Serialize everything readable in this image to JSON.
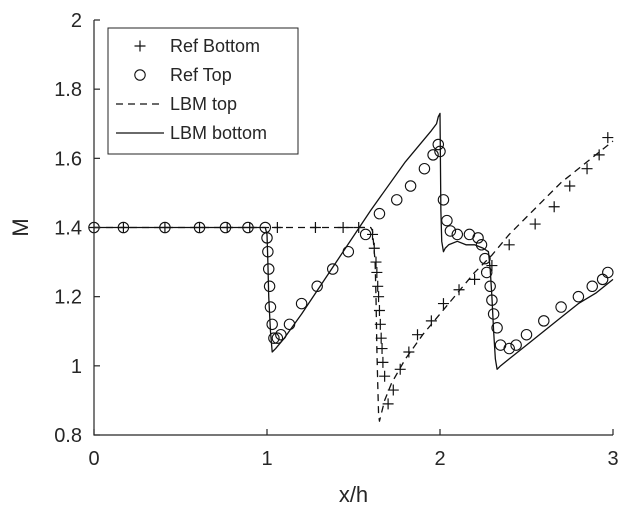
{
  "chart_data": {
    "type": "line",
    "title": "",
    "xlabel": "x/h",
    "ylabel": "M",
    "xlim": [
      0,
      3
    ],
    "ylim": [
      0.8,
      2
    ],
    "xticks": [
      0,
      1,
      2,
      3
    ],
    "xtick_labels": [
      "0",
      "1",
      "2",
      "3"
    ],
    "yticks": [
      0.8,
      1,
      1.2,
      1.4,
      1.6,
      1.8,
      2
    ],
    "ytick_labels": [
      "0.8",
      "1",
      "1.2",
      "1.4",
      "1.6",
      "1.8",
      "2"
    ],
    "grid": false,
    "legend_position": "top-left",
    "series": [
      {
        "name": "Ref Bottom",
        "style": "marker-plus",
        "x": [
          0,
          0.17,
          0.41,
          0.61,
          0.77,
          0.9,
          1.06,
          1.28,
          1.44,
          1.53,
          1.61,
          1.62,
          1.63,
          1.635,
          1.64,
          1.645,
          1.65,
          1.655,
          1.66,
          1.665,
          1.67,
          1.68,
          1.7,
          1.73,
          1.77,
          1.82,
          1.87,
          1.95,
          2.02,
          2.11,
          2.2,
          2.3,
          2.4,
          2.55,
          2.66,
          2.75,
          2.85,
          2.92,
          2.97
        ],
        "y": [
          1.4,
          1.4,
          1.4,
          1.4,
          1.4,
          1.4,
          1.4,
          1.4,
          1.4,
          1.4,
          1.38,
          1.34,
          1.3,
          1.27,
          1.23,
          1.2,
          1.16,
          1.12,
          1.08,
          1.05,
          1.01,
          0.97,
          0.89,
          0.93,
          0.99,
          1.04,
          1.09,
          1.13,
          1.18,
          1.22,
          1.25,
          1.29,
          1.35,
          1.41,
          1.46,
          1.52,
          1.57,
          1.61,
          1.66
        ]
      },
      {
        "name": "Ref Top",
        "style": "marker-circle",
        "x": [
          0,
          0.17,
          0.41,
          0.61,
          0.76,
          0.89,
          0.99,
          1.0,
          1.005,
          1.01,
          1.015,
          1.02,
          1.03,
          1.04,
          1.06,
          1.08,
          1.13,
          1.2,
          1.29,
          1.38,
          1.47,
          1.57,
          1.65,
          1.75,
          1.83,
          1.91,
          1.96,
          1.99,
          2.0,
          2.02,
          2.04,
          2.06,
          2.1,
          2.17,
          2.22,
          2.24,
          2.26,
          2.27,
          2.29,
          2.3,
          2.31,
          2.33,
          2.35,
          2.4,
          2.44,
          2.5,
          2.6,
          2.7,
          2.8,
          2.88,
          2.94,
          2.97
        ],
        "y": [
          1.4,
          1.4,
          1.4,
          1.4,
          1.4,
          1.4,
          1.4,
          1.37,
          1.33,
          1.28,
          1.23,
          1.17,
          1.12,
          1.08,
          1.08,
          1.09,
          1.12,
          1.18,
          1.23,
          1.28,
          1.33,
          1.38,
          1.44,
          1.48,
          1.52,
          1.57,
          1.61,
          1.64,
          1.62,
          1.48,
          1.42,
          1.39,
          1.38,
          1.38,
          1.37,
          1.35,
          1.31,
          1.27,
          1.23,
          1.19,
          1.15,
          1.11,
          1.06,
          1.05,
          1.06,
          1.09,
          1.13,
          1.17,
          1.2,
          1.23,
          1.25,
          1.27
        ]
      },
      {
        "name": "LBM top",
        "style": "dashed",
        "x": [
          0,
          0.5,
          1.0,
          1.6,
          1.61,
          1.625,
          1.63,
          1.635,
          1.64,
          1.645,
          1.65,
          1.68,
          1.72,
          1.8,
          1.9,
          2.0,
          2.1,
          2.2,
          2.3,
          2.4,
          2.5,
          2.6,
          2.7,
          2.8,
          2.9,
          3.0
        ],
        "y": [
          1.4,
          1.4,
          1.4,
          1.4,
          1.39,
          1.3,
          1.2,
          1.05,
          0.95,
          0.86,
          0.84,
          0.9,
          0.95,
          1.02,
          1.09,
          1.15,
          1.21,
          1.27,
          1.32,
          1.38,
          1.43,
          1.48,
          1.53,
          1.57,
          1.61,
          1.65
        ]
      },
      {
        "name": "LBM bottom",
        "style": "solid",
        "x": [
          0,
          0.5,
          0.99,
          1.0,
          1.005,
          1.01,
          1.02,
          1.03,
          1.05,
          1.1,
          1.2,
          1.4,
          1.6,
          1.8,
          1.95,
          1.98,
          1.99,
          2.0,
          2.005,
          2.01,
          2.02,
          2.03,
          2.05,
          2.1,
          2.15,
          2.2,
          2.25,
          2.28,
          2.29,
          2.3,
          2.31,
          2.32,
          2.33,
          2.35,
          2.4,
          2.5,
          2.6,
          2.7,
          2.8,
          2.9,
          3.0
        ],
        "y": [
          1.4,
          1.4,
          1.4,
          1.38,
          1.3,
          1.2,
          1.1,
          1.04,
          1.05,
          1.08,
          1.15,
          1.3,
          1.45,
          1.59,
          1.68,
          1.7,
          1.72,
          1.73,
          1.45,
          1.36,
          1.33,
          1.34,
          1.35,
          1.36,
          1.35,
          1.35,
          1.34,
          1.33,
          1.28,
          1.2,
          1.1,
          1.02,
          0.99,
          1.0,
          1.02,
          1.06,
          1.1,
          1.14,
          1.18,
          1.21,
          1.25
        ]
      }
    ]
  }
}
